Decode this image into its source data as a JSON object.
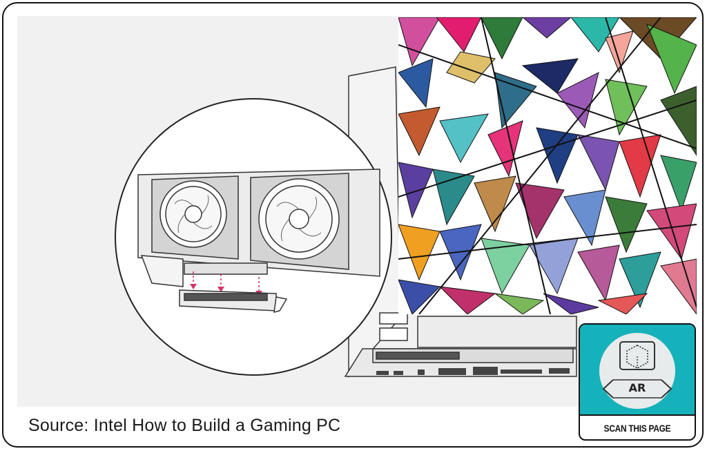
{
  "caption": {
    "text": "Source: Intel How to Build a Gaming PC"
  },
  "ar_badge": {
    "ar_text": "AR",
    "label": "SCAN THIS PAGE",
    "accent_color": "#16b2bb"
  },
  "illustration": {
    "subject": "graphics card being inserted into motherboard PCIe slot"
  },
  "pattern": {
    "style": "abstract overlapping colored triangles with black lines"
  }
}
